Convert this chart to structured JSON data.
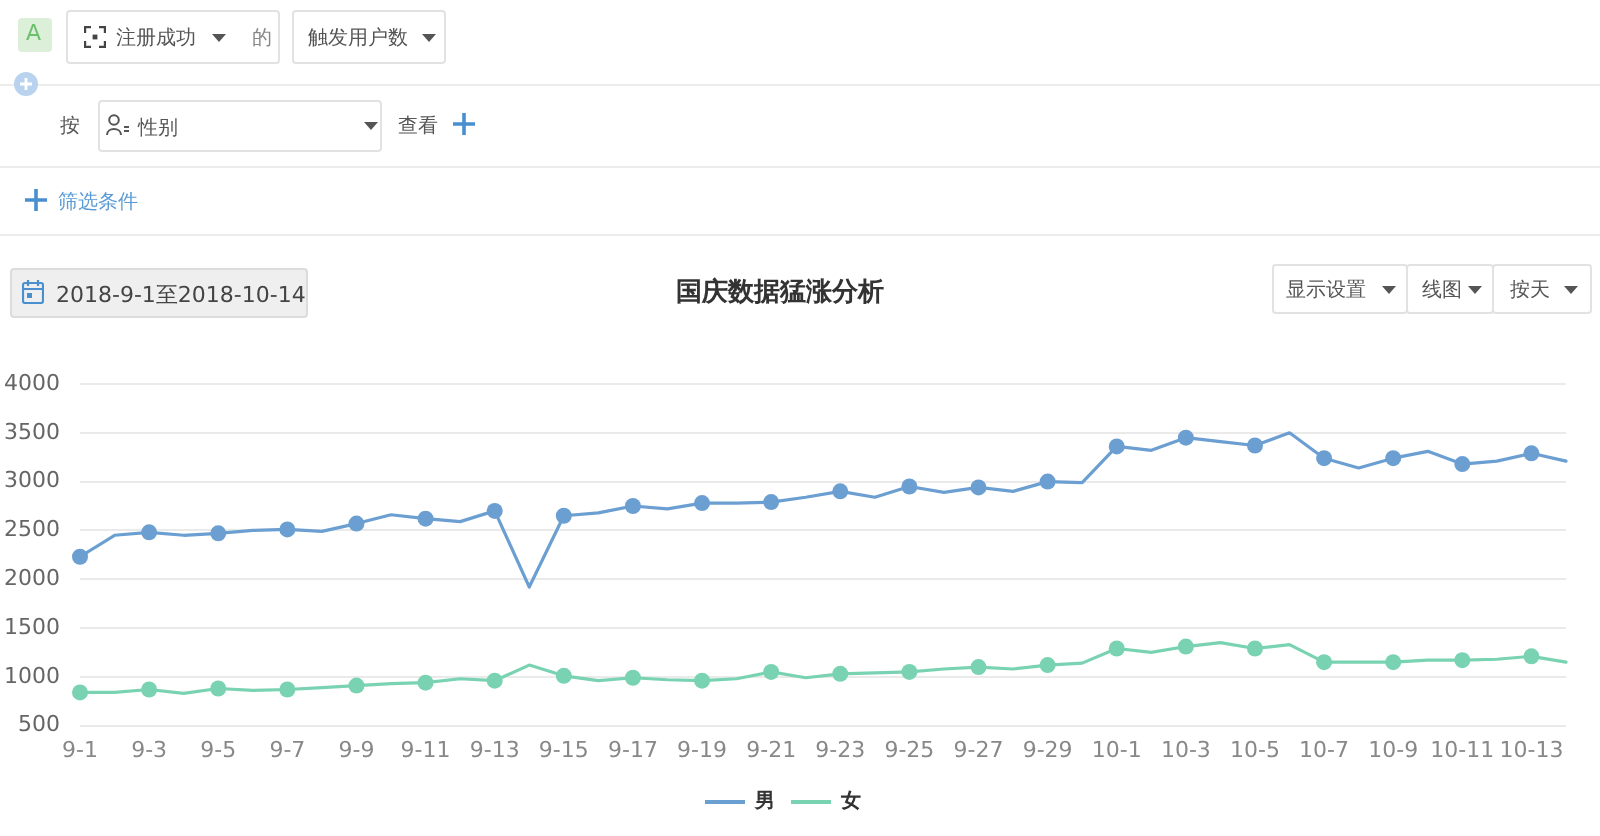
{
  "chart_data": {
    "type": "line",
    "title": "国庆数据猛涨分析",
    "annotations": [
      "A",
      "注册成功",
      "的",
      "触发用户数",
      "按",
      "性别",
      "查看",
      "筛选条件",
      "2018-9-1至2018-10-14",
      "显示设置",
      "线图",
      "按天"
    ],
    "categories": [
      "9-1",
      null,
      "9-3",
      null,
      "9-5",
      null,
      "9-7",
      null,
      "9-9",
      null,
      "9-11",
      null,
      "9-13",
      null,
      "9-15",
      null,
      "9-17",
      null,
      "9-19",
      null,
      "9-21",
      null,
      "9-23",
      null,
      "9-25",
      null,
      "9-27",
      null,
      "9-29",
      null,
      "10-1",
      null,
      "10-3",
      null,
      "10-5",
      null,
      "10-7",
      null,
      "10-9",
      null,
      "10-11",
      null,
      "10-13",
      null
    ],
    "series": [
      {
        "name": "男",
        "color": "#6c9fd1",
        "values": [
          2230,
          2450,
          2480,
          2450,
          2470,
          2500,
          2510,
          2490,
          2570,
          2660,
          2620,
          2590,
          2700,
          1920,
          2650,
          2680,
          2750,
          2720,
          2780,
          2780,
          2790,
          2840,
          2900,
          2840,
          2950,
          2890,
          2940,
          2900,
          3000,
          2990,
          3360,
          3320,
          3450,
          3410,
          3370,
          3500,
          3240,
          3140,
          3240,
          3310,
          3180,
          3210,
          3290,
          3210
        ]
      },
      {
        "name": "女",
        "color": "#79d3b2",
        "values": [
          840,
          840,
          870,
          830,
          880,
          860,
          870,
          890,
          910,
          930,
          940,
          980,
          960,
          1120,
          1010,
          960,
          990,
          970,
          960,
          980,
          1050,
          990,
          1030,
          1040,
          1050,
          1080,
          1100,
          1080,
          1120,
          1140,
          1290,
          1250,
          1310,
          1350,
          1290,
          1330,
          1150,
          1150,
          1150,
          1170,
          1170,
          1180,
          1210,
          1150
        ]
      }
    ],
    "ylim": [
      500,
      4000
    ],
    "yticks": [
      500,
      1000,
      1500,
      2000,
      2500,
      3000,
      3500,
      4000
    ],
    "grid": "y",
    "legend": "bottom",
    "marker": "circle",
    "line_style": "solid"
  }
}
